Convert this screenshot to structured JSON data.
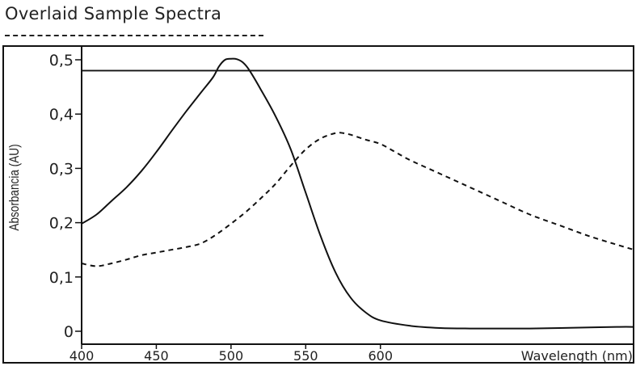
{
  "title": "Overlaid Sample Spectra",
  "chart_data": {
    "type": "line",
    "title": "Overlaid Sample Spectra",
    "xlabel": "Wavelength (nm)",
    "ylabel": "Absorbancia (AU)",
    "xlim": [
      400,
      770
    ],
    "ylim": [
      0,
      0.5
    ],
    "x_ticks": [
      400,
      450,
      500,
      550,
      600
    ],
    "x_tick_labels": [
      "400",
      "450",
      "500",
      "550",
      "600"
    ],
    "y_ticks": [
      0,
      0.1,
      0.2,
      0.3,
      0.4,
      0.5
    ],
    "y_tick_labels": [
      "0",
      "0,1",
      "0,2",
      "0,3",
      "0,4",
      "0,5"
    ],
    "reference_line": {
      "y": 0.48
    },
    "series": [
      {
        "style": "solid",
        "color": "#111111",
        "x": [
          400,
          410,
          420,
          430,
          440,
          450,
          460,
          470,
          480,
          488,
          492,
          496,
          500,
          504,
          508,
          512,
          520,
          530,
          540,
          550,
          560,
          570,
          580,
          590,
          600,
          620,
          640,
          660,
          680,
          700,
          720,
          740,
          760,
          770
        ],
        "y": [
          0.198,
          0.215,
          0.24,
          0.265,
          0.295,
          0.33,
          0.368,
          0.405,
          0.44,
          0.468,
          0.488,
          0.5,
          0.502,
          0.501,
          0.495,
          0.482,
          0.445,
          0.395,
          0.335,
          0.255,
          0.175,
          0.108,
          0.062,
          0.035,
          0.02,
          0.01,
          0.006,
          0.005,
          0.005,
          0.005,
          0.006,
          0.007,
          0.008,
          0.008
        ]
      },
      {
        "style": "dashed",
        "color": "#111111",
        "x": [
          400,
          410,
          420,
          430,
          440,
          450,
          460,
          470,
          480,
          490,
          500,
          510,
          520,
          530,
          540,
          550,
          560,
          570,
          575,
          580,
          590,
          600,
          610,
          620,
          640,
          660,
          680,
          700,
          720,
          740,
          760,
          770
        ],
        "y": [
          0.125,
          0.12,
          0.125,
          0.132,
          0.14,
          0.145,
          0.15,
          0.155,
          0.162,
          0.178,
          0.198,
          0.22,
          0.245,
          0.272,
          0.305,
          0.335,
          0.355,
          0.365,
          0.365,
          0.362,
          0.353,
          0.345,
          0.33,
          0.315,
          0.29,
          0.265,
          0.24,
          0.215,
          0.195,
          0.175,
          0.158,
          0.15
        ]
      }
    ]
  }
}
